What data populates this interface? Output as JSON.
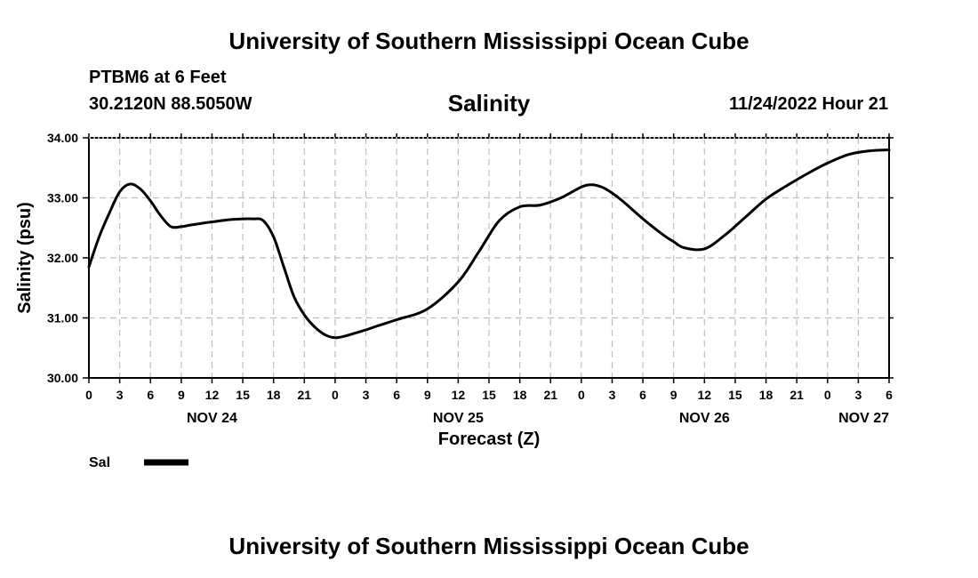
{
  "header": {
    "title": "University of Southern Mississippi Ocean Cube",
    "station": "PTBM6 at 6 Feet",
    "coords": "30.2120N  88.5050W",
    "run_time": "11/24/2022 Hour 21"
  },
  "footer": {
    "title": "University of Southern Mississippi Ocean Cube"
  },
  "chart_data": {
    "type": "line",
    "title": "Salinity",
    "xlabel": "Forecast (Z)",
    "ylabel": "Salinity (psu)",
    "ylim": [
      30.0,
      34.0
    ],
    "y_ticks": [
      "30.00",
      "31.00",
      "32.00",
      "33.00",
      "34.00"
    ],
    "xlim": [
      0,
      78
    ],
    "x_tick_hours": [
      0,
      3,
      6,
      9,
      12,
      15,
      18,
      21,
      24,
      27,
      30,
      33,
      36,
      39,
      42,
      45,
      48,
      51,
      54,
      57,
      60,
      63,
      66,
      69,
      72,
      75,
      78
    ],
    "x_tick_labels": [
      "0",
      "3",
      "6",
      "9",
      "12",
      "15",
      "18",
      "21",
      "0",
      "3",
      "6",
      "9",
      "12",
      "15",
      "18",
      "21",
      "0",
      "3",
      "6",
      "9",
      "12",
      "15",
      "18",
      "21",
      "0",
      "3",
      "6"
    ],
    "day_labels": [
      {
        "hour": 12,
        "label": "NOV 24"
      },
      {
        "hour": 36,
        "label": "NOV 25"
      },
      {
        "hour": 60,
        "label": "NOV 26"
      },
      {
        "hour": 78,
        "label": "NOV 27"
      }
    ],
    "grid": true,
    "legend": [
      {
        "name": "Sal",
        "color": "#000000"
      }
    ],
    "series": [
      {
        "name": "Sal",
        "x": [
          0,
          1,
          2,
          3,
          4,
          5,
          6,
          7,
          8,
          9,
          10,
          12,
          14,
          16,
          17,
          18,
          19,
          20,
          21,
          22,
          23,
          24,
          25,
          26,
          27,
          28,
          30,
          33,
          36,
          38,
          40,
          42,
          44,
          46,
          48,
          49,
          50,
          51,
          52,
          54,
          56,
          57,
          58,
          60,
          62,
          64,
          66,
          68,
          70,
          72,
          74,
          76,
          78
        ],
        "values": [
          31.85,
          32.35,
          32.75,
          33.1,
          33.23,
          33.15,
          32.95,
          32.7,
          32.52,
          32.52,
          32.55,
          32.6,
          32.64,
          32.65,
          32.62,
          32.35,
          31.85,
          31.35,
          31.05,
          30.85,
          30.72,
          30.67,
          30.7,
          30.75,
          30.8,
          30.86,
          30.97,
          31.15,
          31.6,
          32.1,
          32.62,
          32.85,
          32.88,
          33.0,
          33.18,
          33.22,
          33.18,
          33.08,
          32.95,
          32.65,
          32.38,
          32.27,
          32.17,
          32.15,
          32.38,
          32.68,
          32.98,
          33.2,
          33.4,
          33.58,
          33.72,
          33.78,
          33.8
        ]
      }
    ]
  }
}
